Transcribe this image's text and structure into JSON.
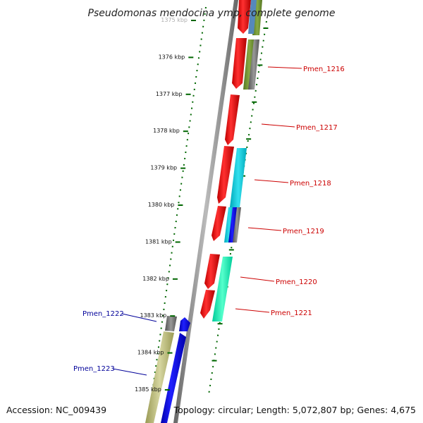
{
  "title": "Pseudomonas mendocina ymp, complete genome",
  "footer": {
    "accession": "Accession: NC_009439",
    "topology": "Topology: circular; Length: 5,072,807 bp; Genes: 4,675"
  },
  "ticks": [
    "1375 kbp",
    "1376 kbp",
    "1377 kbp",
    "1378 kbp",
    "1379 kbp",
    "1380 kbp",
    "1381 kbp",
    "1382 kbp",
    "1383 kbp",
    "1384 kbp",
    "1385 kbp"
  ],
  "gene_labels": {
    "forward": [
      "Pmen_1216",
      "Pmen_1217",
      "Pmen_1218",
      "Pmen_1219",
      "Pmen_1220",
      "Pmen_1221"
    ],
    "reverse": [
      "Pmen_1222",
      "Pmen_1223"
    ]
  },
  "colors": {
    "forward_label": "#cc0000",
    "reverse_label": "#000099",
    "tick_marks": "#006600",
    "backbone": "#888888",
    "cds_forward": "#ff0000",
    "cds_reverse": "#0000ff"
  }
}
